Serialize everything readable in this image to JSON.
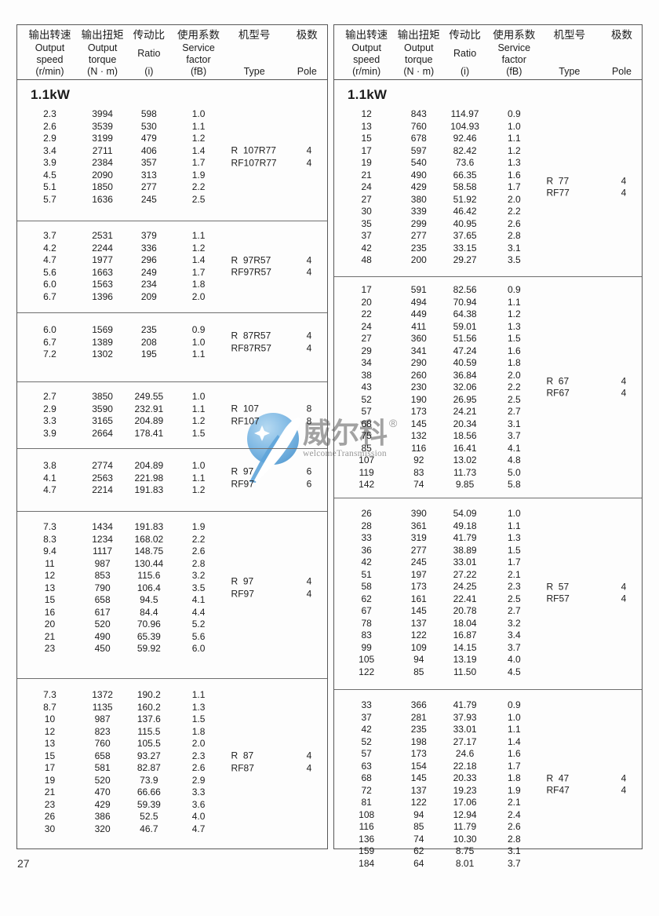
{
  "page": {
    "number": "27"
  },
  "watermark": {
    "zh": "威尔科",
    "reg": "®",
    "en": "welcomeTransmission"
  },
  "colors": {
    "watermark_blue": "#5EA4D9",
    "watermark_blue_light": "#AFD6F0",
    "watermark_gray": "#8e8e8e",
    "border_gray": "#585858"
  },
  "header_columns": [
    {
      "zh": "输出转速",
      "en": [
        "Output",
        "speed"
      ],
      "unit": "(r/min)"
    },
    {
      "zh": "输出扭矩",
      "en": [
        "Output",
        "torque"
      ],
      "unit": "(N · m)"
    },
    {
      "zh": "传动比",
      "en": [
        "Ratio"
      ],
      "unit": "(i)"
    },
    {
      "zh": "使用系数",
      "en": [
        "Service",
        "factor"
      ],
      "unit": "(fB)"
    },
    {
      "zh": "机型号",
      "en": [],
      "unit": "Type"
    },
    {
      "zh": "极数",
      "en": [],
      "unit": "Pole"
    }
  ],
  "tables": {
    "left": {
      "power_label": "1.1kW",
      "blocks": [
        {
          "rows": [
            [
              "2.3",
              "3994",
              "598",
              "1.0"
            ],
            [
              "2.6",
              "3539",
              "530",
              "1.1"
            ],
            [
              "2.9",
              "3199",
              "479",
              "1.2"
            ],
            [
              "3.4",
              "2711",
              "406",
              "1.4"
            ],
            [
              "3.9",
              "2384",
              "357",
              "1.7"
            ],
            [
              "4.5",
              "2090",
              "313",
              "1.9"
            ],
            [
              "5.1",
              "1850",
              "277",
              "2.2"
            ],
            [
              "5.7",
              "1636",
              "245",
              "2.5"
            ]
          ],
          "types": [
            {
              "name": "R  107R77",
              "pole": "4"
            },
            {
              "name": "RF107R77",
              "pole": "4"
            }
          ]
        },
        {
          "rows": [
            [
              "3.7",
              "2531",
              "379",
              "1.1"
            ],
            [
              "4.2",
              "2244",
              "336",
              "1.2"
            ],
            [
              "4.7",
              "1977",
              "296",
              "1.4"
            ],
            [
              "5.6",
              "1663",
              "249",
              "1.7"
            ],
            [
              "6.0",
              "1563",
              "234",
              "1.8"
            ],
            [
              "6.7",
              "1396",
              "209",
              "2.0"
            ]
          ],
          "types": [
            {
              "name": "R  97R57",
              "pole": "4"
            },
            {
              "name": "RF97R57",
              "pole": "4"
            }
          ]
        },
        {
          "rows": [
            [
              "6.0",
              "1569",
              "235",
              "0.9"
            ],
            [
              "6.7",
              "1389",
              "208",
              "1.0"
            ],
            [
              "7.2",
              "1302",
              "195",
              "1.1"
            ]
          ],
          "types": [
            {
              "name": "R  87R57",
              "pole": "4"
            },
            {
              "name": "RF87R57",
              "pole": "4"
            }
          ]
        },
        {
          "rows": [
            [
              "2.7",
              "3850",
              "249.55",
              "1.0"
            ],
            [
              "2.9",
              "3590",
              "232.91",
              "1.1"
            ],
            [
              "3.3",
              "3165",
              "204.89",
              "1.2"
            ],
            [
              "3.9",
              "2664",
              "178.41",
              "1.5"
            ]
          ],
          "types": [
            {
              "name": "R  107",
              "pole": "8"
            },
            {
              "name": "RF107",
              "pole": "8"
            }
          ]
        },
        {
          "rows": [
            [
              "3.8",
              "2774",
              "204.89",
              "1.0"
            ],
            [
              "4.1",
              "2563",
              "221.98",
              "1.1"
            ],
            [
              "4.7",
              "2214",
              "191.83",
              "1.2"
            ]
          ],
          "types": [
            {
              "name": "R  97",
              "pole": "6"
            },
            {
              "name": "RF97",
              "pole": "6"
            }
          ]
        },
        {
          "rows": [
            [
              "7.3",
              "1434",
              "191.83",
              "1.9"
            ],
            [
              "8.3",
              "1234",
              "168.02",
              "2.2"
            ],
            [
              "9.4",
              "1117",
              "148.75",
              "2.6"
            ],
            [
              "11",
              "987",
              "130.44",
              "2.8"
            ],
            [
              "12",
              "853",
              "115.6",
              "3.2"
            ],
            [
              "13",
              "790",
              "106.4",
              "3.5"
            ],
            [
              "15",
              "658",
              "94.5",
              "4.1"
            ],
            [
              "16",
              "617",
              "84.4",
              "4.4"
            ],
            [
              "20",
              "520",
              "70.96",
              "5.2"
            ],
            [
              "21",
              "490",
              "65.39",
              "5.6"
            ],
            [
              "23",
              "450",
              "59.92",
              "6.0"
            ]
          ],
          "types": [
            {
              "name": "R  97",
              "pole": "4"
            },
            {
              "name": "RF97",
              "pole": "4"
            }
          ]
        },
        {
          "rows": [
            [
              "7.3",
              "1372",
              "190.2",
              "1.1"
            ],
            [
              "8.7",
              "1135",
              "160.2",
              "1.3"
            ],
            [
              "10",
              "987",
              "137.6",
              "1.5"
            ],
            [
              "12",
              "823",
              "115.5",
              "1.8"
            ],
            [
              "13",
              "760",
              "105.5",
              "2.0"
            ],
            [
              "15",
              "658",
              "93.27",
              "2.3"
            ],
            [
              "17",
              "581",
              "82.87",
              "2.6"
            ],
            [
              "19",
              "520",
              "73.9",
              "2.9"
            ],
            [
              "21",
              "470",
              "66.66",
              "3.3"
            ],
            [
              "23",
              "429",
              "59.39",
              "3.6"
            ],
            [
              "26",
              "386",
              "52.5",
              "4.0"
            ],
            [
              "30",
              "320",
              "46.7",
              "4.7"
            ]
          ],
          "types": [
            {
              "name": "R  87",
              "pole": "4"
            },
            {
              "name": "RF87",
              "pole": "4"
            }
          ]
        }
      ]
    },
    "right": {
      "power_label": "1.1kW",
      "blocks": [
        {
          "rows": [
            [
              "12",
              "843",
              "114.97",
              "0.9"
            ],
            [
              "13",
              "760",
              "104.93",
              "1.0"
            ],
            [
              "15",
              "678",
              "92.46",
              "1.1"
            ],
            [
              "17",
              "597",
              "82.42",
              "1.2"
            ],
            [
              "19",
              "540",
              "73.6",
              "1.3"
            ],
            [
              "21",
              "490",
              "66.35",
              "1.6"
            ],
            [
              "24",
              "429",
              "58.58",
              "1.7"
            ],
            [
              "27",
              "380",
              "51.92",
              "2.0"
            ],
            [
              "30",
              "339",
              "46.42",
              "2.2"
            ],
            [
              "35",
              "299",
              "40.95",
              "2.6"
            ],
            [
              "37",
              "277",
              "37.65",
              "2.8"
            ],
            [
              "42",
              "235",
              "33.15",
              "3.1"
            ],
            [
              "48",
              "200",
              "29.27",
              "3.5"
            ]
          ],
          "types": [
            {
              "name": "R  77",
              "pole": "4"
            },
            {
              "name": "RF77",
              "pole": "4"
            }
          ]
        },
        {
          "rows": [
            [
              "17",
              "591",
              "82.56",
              "0.9"
            ],
            [
              "20",
              "494",
              "70.94",
              "1.1"
            ],
            [
              "22",
              "449",
              "64.38",
              "1.2"
            ],
            [
              "24",
              "411",
              "59.01",
              "1.3"
            ],
            [
              "27",
              "360",
              "51.56",
              "1.5"
            ],
            [
              "29",
              "341",
              "47.24",
              "1.6"
            ],
            [
              "34",
              "290",
              "40.59",
              "1.8"
            ],
            [
              "38",
              "260",
              "36.84",
              "2.0"
            ],
            [
              "43",
              "230",
              "32.06",
              "2.2"
            ],
            [
              "52",
              "190",
              "26.95",
              "2.5"
            ],
            [
              "57",
              "173",
              "24.21",
              "2.7"
            ],
            [
              "68",
              "145",
              "20.34",
              "3.1"
            ],
            [
              "75",
              "132",
              "18.56",
              "3.7"
            ],
            [
              "85",
              "116",
              "16.41",
              "4.1"
            ],
            [
              "107",
              "92",
              "13.02",
              "4.8"
            ],
            [
              "119",
              "83",
              "11.73",
              "5.0"
            ],
            [
              "142",
              "74",
              "9.85",
              "5.8"
            ]
          ],
          "types": [
            {
              "name": "R  67",
              "pole": "4"
            },
            {
              "name": "RF67",
              "pole": "4"
            }
          ]
        },
        {
          "rows": [
            [
              "26",
              "390",
              "54.09",
              "1.0"
            ],
            [
              "28",
              "361",
              "49.18",
              "1.1"
            ],
            [
              "33",
              "319",
              "41.79",
              "1.3"
            ],
            [
              "36",
              "277",
              "38.89",
              "1.5"
            ],
            [
              "42",
              "245",
              "33.01",
              "1.7"
            ],
            [
              "51",
              "197",
              "27.22",
              "2.1"
            ],
            [
              "58",
              "173",
              "24.25",
              "2.3"
            ],
            [
              "62",
              "161",
              "22.41",
              "2.5"
            ],
            [
              "67",
              "145",
              "20.78",
              "2.7"
            ],
            [
              "78",
              "137",
              "18.04",
              "3.2"
            ],
            [
              "83",
              "122",
              "16.87",
              "3.4"
            ],
            [
              "99",
              "109",
              "14.15",
              "3.7"
            ],
            [
              "105",
              "94",
              "13.19",
              "4.0"
            ],
            [
              "122",
              "85",
              "11.50",
              "4.5"
            ]
          ],
          "types": [
            {
              "name": "R  57",
              "pole": "4"
            },
            {
              "name": "RF57",
              "pole": "4"
            }
          ]
        },
        {
          "rows": [
            [
              "33",
              "366",
              "41.79",
              "0.9"
            ],
            [
              "37",
              "281",
              "37.93",
              "1.0"
            ],
            [
              "42",
              "235",
              "33.01",
              "1.1"
            ],
            [
              "52",
              "198",
              "27.17",
              "1.4"
            ],
            [
              "57",
              "173",
              "24.6",
              "1.6"
            ],
            [
              "63",
              "154",
              "22.18",
              "1.7"
            ],
            [
              "68",
              "145",
              "20.33",
              "1.8"
            ],
            [
              "72",
              "137",
              "19.23",
              "1.9"
            ],
            [
              "81",
              "122",
              "17.06",
              "2.1"
            ],
            [
              "108",
              "94",
              "12.94",
              "2.4"
            ],
            [
              "116",
              "85",
              "11.79",
              "2.6"
            ],
            [
              "136",
              "74",
              "10.30",
              "2.8"
            ],
            [
              "159",
              "62",
              "8.75",
              "3.1"
            ],
            [
              "184",
              "64",
              "8.01",
              "3.7"
            ]
          ],
          "types": [
            {
              "name": "R  47",
              "pole": "4"
            },
            {
              "name": "RF47",
              "pole": "4"
            }
          ]
        }
      ]
    }
  }
}
